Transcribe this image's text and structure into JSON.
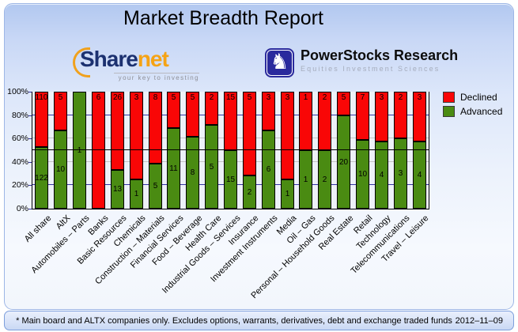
{
  "header": {
    "title": "Market Breadth Report"
  },
  "logos": {
    "sharenet": {
      "part1": "Share",
      "part2": "net",
      "tagline": "your key to investing"
    },
    "powerstocks": {
      "name": "PowerStocks Research",
      "tagline": "Equities Investment Sciences",
      "knight_glyph": "♞"
    }
  },
  "legend": {
    "items": [
      {
        "label": "Declined",
        "color": "#f90606"
      },
      {
        "label": "Advanced",
        "color": "#4a8b12"
      }
    ]
  },
  "chart_data": {
    "type": "bar",
    "variant": "stacked-100-percent",
    "title": "Market Breadth Report",
    "categories": [
      "All share",
      "AltX",
      "Automobiles – Parts",
      "Banks",
      "Basic Resources",
      "Chemicals",
      "Construction – Materials",
      "Financial Services",
      "Food – Beverage",
      "Health Care",
      "Industrial Goods – Services",
      "Insurance",
      "Investment Instruments",
      "Media",
      "Oil – Gas",
      "Personal – Household Goods",
      "Real Estate",
      "Retail",
      "Technology",
      "Telecommunications",
      "Travel – Leisure"
    ],
    "series": [
      {
        "name": "Declined",
        "color": "#f90606",
        "values": [
          110,
          5,
          0,
          6,
          26,
          3,
          8,
          5,
          5,
          2,
          15,
          5,
          3,
          3,
          1,
          2,
          5,
          7,
          3,
          2,
          3
        ]
      },
      {
        "name": "Advanced",
        "color": "#4a8b12",
        "values": [
          122,
          10,
          1,
          0,
          13,
          1,
          5,
          11,
          8,
          5,
          15,
          2,
          6,
          1,
          1,
          2,
          20,
          10,
          4,
          3,
          4
        ]
      }
    ],
    "y_ticks": [
      "100%",
      "80%",
      "60%",
      "40%",
      "20%",
      "0%"
    ],
    "ylim": [
      0,
      100
    ],
    "grid": "horizontal",
    "gridline_pcts_navy": [
      80,
      20
    ],
    "gridline_pcts_gray": [
      60,
      40
    ],
    "reference_line_pct": 50,
    "legend_position": "top-right",
    "bar_value_labels": true
  },
  "footer": {
    "note": "* Main board and ALTX companies only. Excludes options, warrants, derivatives, debt and exchange traded funds",
    "date": "2012–11–09"
  }
}
